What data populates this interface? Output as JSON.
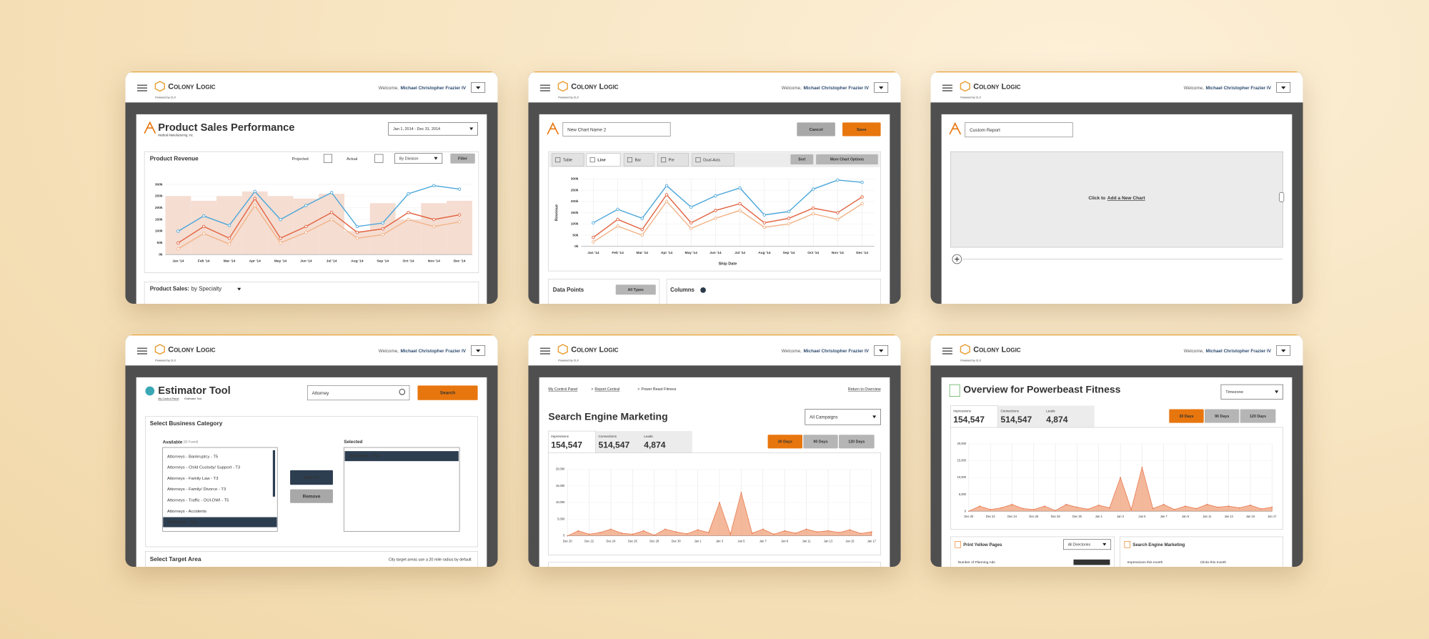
{
  "header": {
    "brand": "Colony Logic",
    "powered": "Powered by CLX",
    "welcome": "Welcome,",
    "user": "Michael Christopher Frazier IV"
  },
  "panels": [
    {
      "title": "Product Sales Performance",
      "subtitle": "Medical Manufacturing, Inc.",
      "date_range": "Jan 1, 2014 - Dec 31, 2014",
      "card_title": "Product Revenue",
      "legend": [
        "Projected",
        "Actual"
      ],
      "group_by": "By Division",
      "filter": "Filter",
      "chart": {
        "categories": [
          "Jan '14",
          "Feb '14",
          "Mar '14",
          "Apr '14",
          "May '14",
          "Jun '14",
          "Jul '14",
          "Aug '14",
          "Sep '14",
          "Oct '14",
          "Nov '14",
          "Dec '14"
        ],
        "ylim": [
          0,
          300000
        ],
        "yticks": [
          {
            "value": 0,
            "label": "0k"
          },
          {
            "value": 50000,
            "label": "50k"
          },
          {
            "value": 100000,
            "label": "100k"
          },
          {
            "value": 150000,
            "label": "150k"
          },
          {
            "value": 200000,
            "label": "200k"
          },
          {
            "value": 250000,
            "label": "250k"
          },
          {
            "value": 300000,
            "label": "300k"
          }
        ],
        "bars": {
          "color": "#f5ddd2",
          "values": [
            250000,
            230000,
            250000,
            270000,
            250000,
            240000,
            260000,
            100000,
            220000,
            150000,
            220000,
            230000
          ]
        },
        "series": [
          {
            "color": "#4ba6d9",
            "values": [
              100000,
              165000,
              125000,
              270000,
              150000,
              210000,
              265000,
              120000,
              135000,
              260000,
              295000,
              280000
            ]
          },
          {
            "color": "#e2623f",
            "values": [
              50000,
              120000,
              70000,
              240000,
              70000,
              120000,
              180000,
              95000,
              110000,
              180000,
              150000,
              170000
            ]
          },
          {
            "color": "#f2b387",
            "values": [
              25000,
              90000,
              45000,
              210000,
              50000,
              95000,
              150000,
              70000,
              85000,
              150000,
              120000,
              140000
            ]
          }
        ]
      },
      "section": "Product Sales:",
      "section_by": "by Specialty"
    },
    {
      "name_input": "New Chart Name 2",
      "cancel": "Cancel",
      "save": "Save",
      "tabs": [
        "Table",
        "Line",
        "Bar",
        "Pie",
        "Dual-Axis"
      ],
      "sort": "Sort",
      "more": "More Chart Options",
      "chart": {
        "categories": [
          "Jan '14",
          "Feb '14",
          "Mar '14",
          "Apr '14",
          "May '14",
          "Jun '14",
          "Jul '14",
          "Aug '14",
          "Sep '14",
          "Oct '14",
          "Nov '14",
          "Dec '14"
        ],
        "ylabel": "Revenue",
        "xlabel": "Ship Date",
        "ylim": [
          0,
          300000
        ],
        "yticks": [
          {
            "value": 0,
            "label": "0k"
          },
          {
            "value": 50000,
            "label": "50k"
          },
          {
            "value": 100000,
            "label": "100k"
          },
          {
            "value": 150000,
            "label": "150k"
          },
          {
            "value": 200000,
            "label": "200k"
          },
          {
            "value": 250000,
            "label": "250k"
          },
          {
            "value": 300000,
            "label": "300k"
          }
        ],
        "series": [
          {
            "color": "#4ba6d9",
            "values": [
              105000,
              165000,
              125000,
              270000,
              175000,
              225000,
              260000,
              140000,
              155000,
              255000,
              295000,
              285000
            ]
          },
          {
            "color": "#e2623f",
            "values": [
              40000,
              120000,
              75000,
              230000,
              105000,
              160000,
              190000,
              105000,
              125000,
              170000,
              150000,
              220000
            ]
          },
          {
            "color": "#f2b387",
            "values": [
              20000,
              90000,
              50000,
              200000,
              80000,
              125000,
              160000,
              85000,
              100000,
              145000,
              120000,
              190000
            ]
          }
        ]
      },
      "data_points": "Data Points",
      "all_types": "All Types",
      "columns": "Columns"
    },
    {
      "name_input": "Custom Report",
      "prompt": "Click to",
      "link": "Add a New Chart"
    },
    {
      "title": "Estimator Tool",
      "breadcrumb": [
        "My Control Panel",
        "Estimator Tool"
      ],
      "search_input": "Attorney",
      "search": "Search",
      "card_title": "Select Business Category",
      "available": "Available",
      "found": "(25 Found)",
      "items": [
        "Attorneys - Bankruptcy - T5",
        "Attorneys - Child Custody/ Support - T3",
        "Attorneys - Family Law - T3",
        "Attorneys - Family/ Divorce - T3",
        "Attorneys - Traffic - DUI-DWI - T5",
        "Attorneys - Accidents",
        "Attorneys - Tax"
      ],
      "selected_title": "Selected",
      "selected": [
        "Attorneys - Tax"
      ],
      "add": "Add >>",
      "remove": "Remove",
      "area_title": "Select Target Area",
      "area_note": "City target areas use a 20 mile radius by default"
    },
    {
      "breadcrumb": [
        "My Control Panel",
        "Report Central",
        "Power Beast Fitness"
      ],
      "return": "Return to Overview",
      "title": "Search Engine Marketing",
      "campaigns": "All Campaigns",
      "stats": [
        {
          "label": "Impressions",
          "value": "154,547"
        },
        {
          "label": "Connections",
          "value": "514,547"
        },
        {
          "label": "Leads",
          "value": "4,874"
        }
      ],
      "ranges": [
        "30 Days",
        "90 Days",
        "120 Days"
      ],
      "chart": {
        "color": "#f0a07a",
        "x": [
          "Dec 20",
          null,
          "Dec 22",
          null,
          "Dec 24",
          null,
          "Dec 26",
          null,
          "Dec 28",
          null,
          "Dec 30",
          null,
          "Jan 1",
          null,
          "Jan 3",
          null,
          "Jan 5",
          null,
          "Jan 7",
          null,
          "Jan 9",
          null,
          "Jan 11",
          null,
          "Jan 13",
          null,
          "Jan 15",
          null,
          "Jan 17"
        ],
        "values": [
          0,
          1500,
          500,
          1000,
          2000,
          800,
          500,
          1500,
          200,
          2000,
          1200,
          600,
          1800,
          1000,
          10000,
          500,
          13000,
          800,
          2000,
          500,
          1500,
          800,
          2000,
          1200,
          1500,
          1000,
          1800,
          700,
          1200
        ],
        "ylim": [
          0,
          20000
        ],
        "yticks": [
          0,
          {
            "value": 5000,
            "label": "5,000"
          },
          {
            "value": 10000,
            "label": "10,000"
          },
          {
            "value": 15000,
            "label": "15,000"
          },
          {
            "value": 20000,
            "label": "20,000"
          }
        ]
      }
    },
    {
      "title": "Overview for Powerbeast Fitness",
      "timezone": "Timezone",
      "cards": [
        {
          "title": "Print Yellow Pages",
          "filter": "All Directories",
          "metrics": [
            "Number of Planning Ads"
          ]
        },
        {
          "title": "Search Engine Marketing",
          "metrics": [
            "Impressions this month",
            "Clicks this month"
          ]
        }
      ]
    }
  ]
}
